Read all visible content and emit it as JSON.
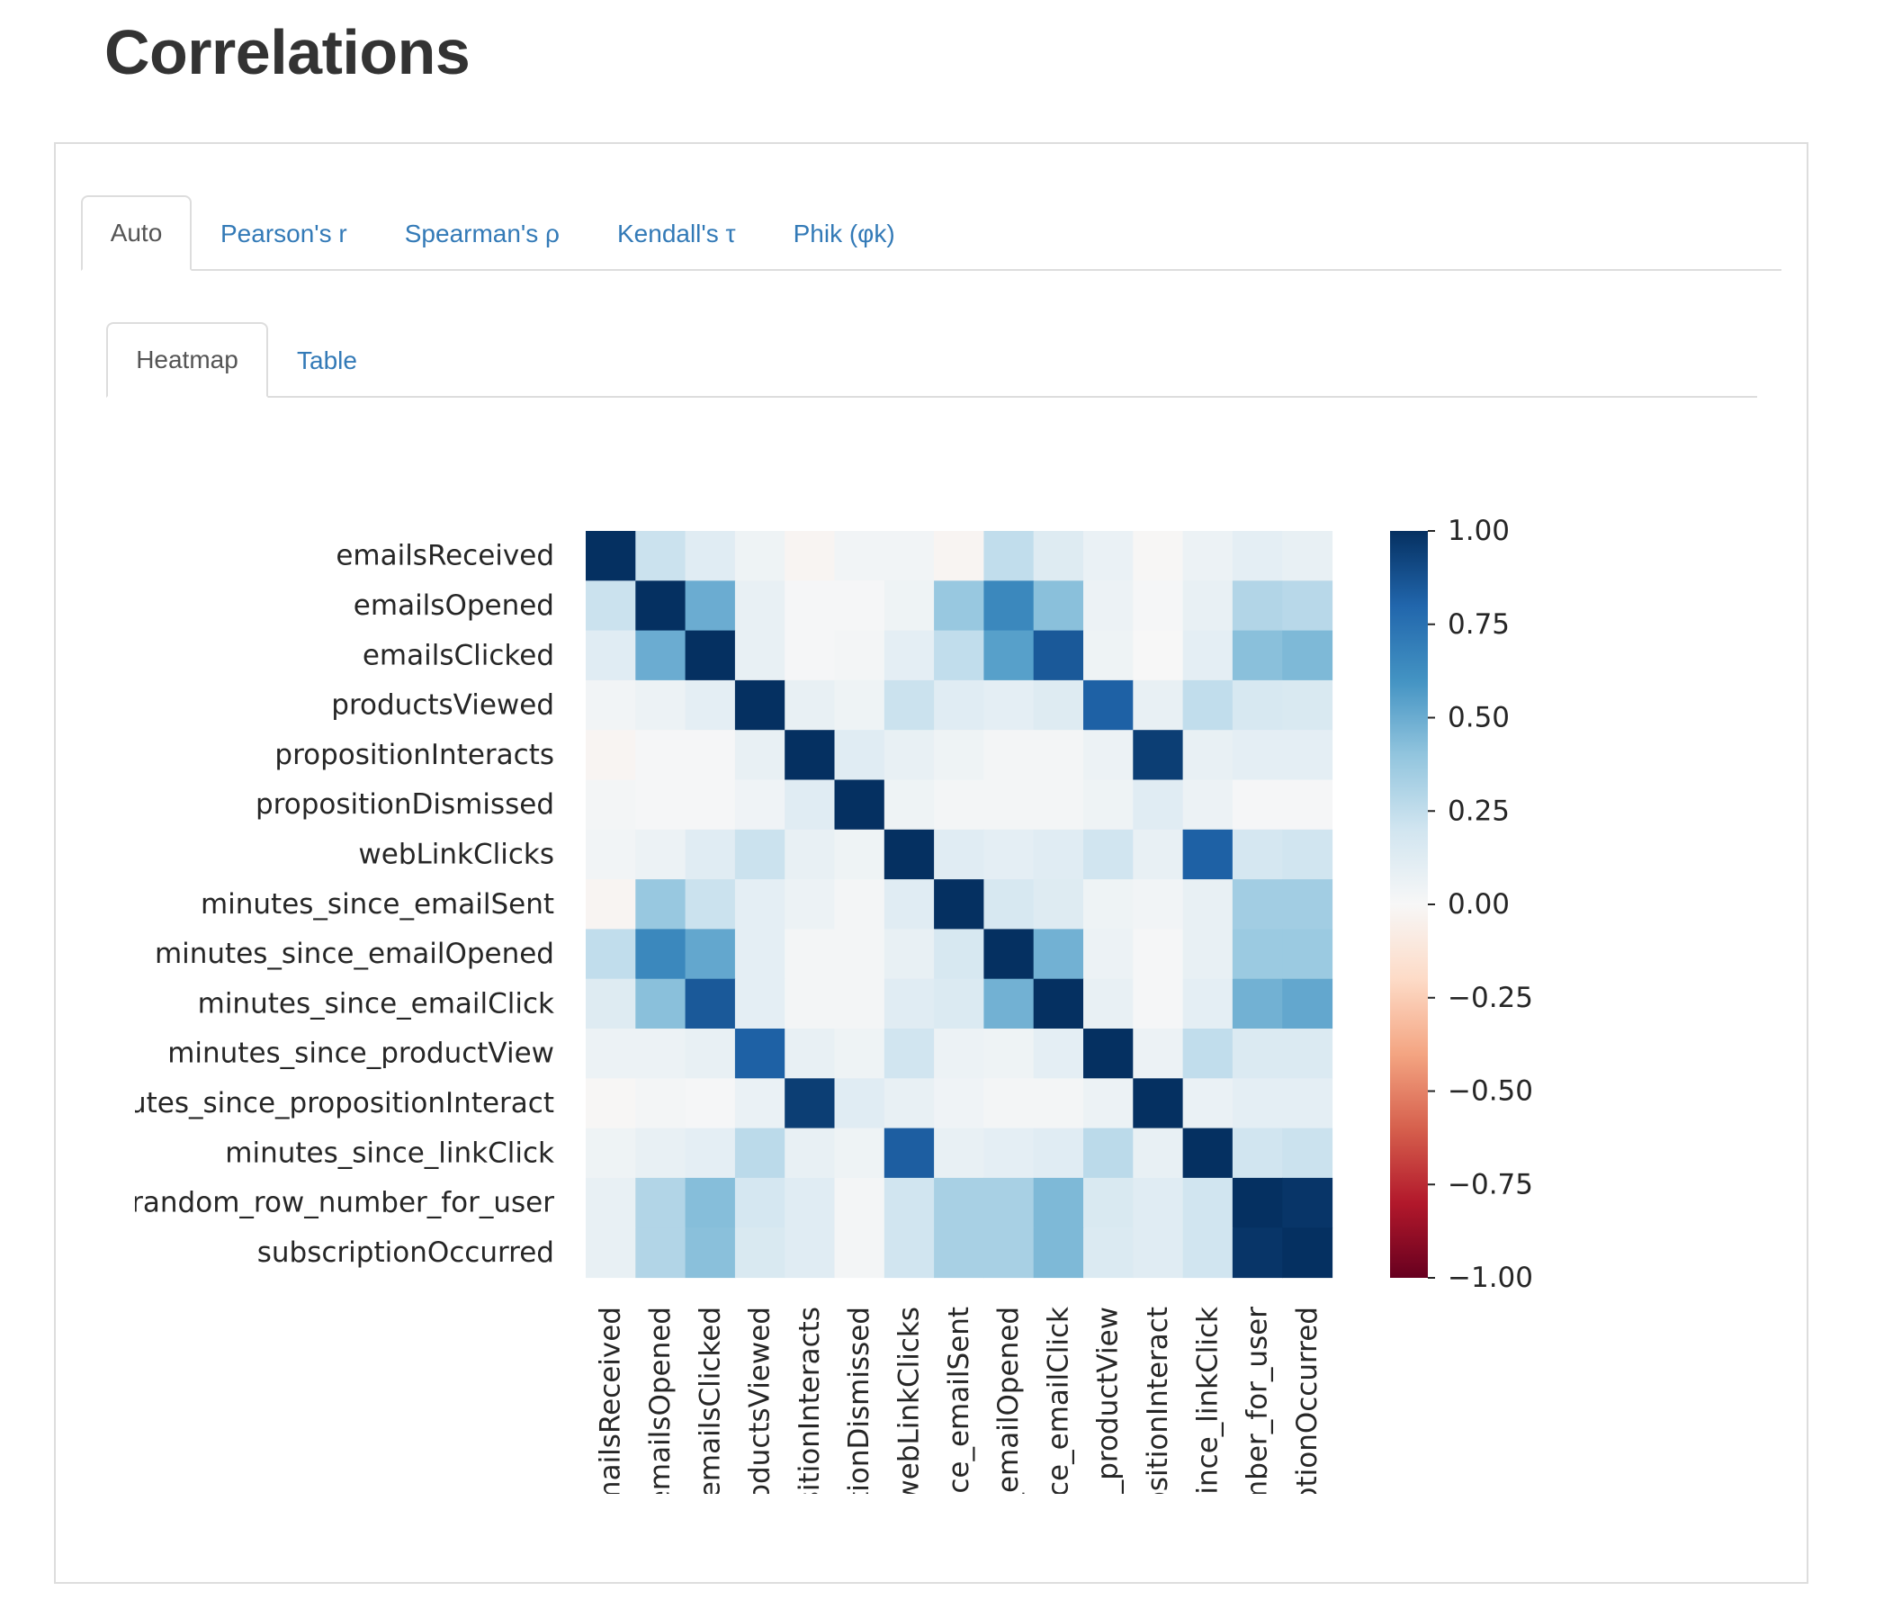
{
  "title": "Correlations",
  "main_tabs": [
    {
      "label": "Auto",
      "active": true
    },
    {
      "label": "Pearson's r",
      "active": false
    },
    {
      "label": "Spearman's ρ",
      "active": false
    },
    {
      "label": "Kendall's τ",
      "active": false
    },
    {
      "label": "Phik (φk)",
      "active": false
    }
  ],
  "sub_tabs": [
    {
      "label": "Heatmap",
      "active": true
    },
    {
      "label": "Table",
      "active": false
    }
  ],
  "colors": {
    "link": "#337ab7",
    "active_tab_text": "#555555",
    "border": "#dddddd",
    "colormap": [
      "#67001f",
      "#b2182b",
      "#d6604d",
      "#f4a582",
      "#fddbc7",
      "#f7f7f7",
      "#d1e5f0",
      "#92c5de",
      "#4393c3",
      "#2166ac",
      "#053061"
    ]
  },
  "chart_data": {
    "type": "heatmap",
    "row_labels": [
      "emailsReceived",
      "emailsOpened",
      "emailsClicked",
      "productsViewed",
      "propositionInteracts",
      "propositionDismissed",
      "webLinkClicks",
      "minutes_since_emailSent",
      "minutes_since_emailOpened",
      "minutes_since_emailClick",
      "minutes_since_productView",
      "utes_since_propositionInteract",
      "minutes_since_linkClick",
      "random_row_number_for_user",
      "subscriptionOccurred"
    ],
    "col_labels": [
      "mailsReceived",
      "emailsOpened",
      "emailsClicked",
      "oductsViewed",
      "sitionInteracts",
      "tionDismissed",
      "webLinkClicks",
      "nce_emailSent",
      "_emailOpened",
      "ce_emailClick",
      "e_productView",
      "positionInteract",
      "since_linkClick",
      "mber_for_user",
      "ptionOccurred"
    ],
    "values": [
      [
        1.0,
        0.22,
        0.12,
        0.05,
        -0.02,
        0.03,
        0.03,
        -0.02,
        0.25,
        0.13,
        0.07,
        -0.01,
        0.06,
        0.1,
        0.08
      ],
      [
        0.22,
        1.0,
        0.5,
        0.08,
        0.01,
        0.01,
        0.05,
        0.38,
        0.65,
        0.42,
        0.06,
        0.01,
        0.08,
        0.3,
        0.28
      ],
      [
        0.12,
        0.5,
        1.0,
        0.08,
        0.01,
        0.02,
        0.1,
        0.25,
        0.55,
        0.85,
        0.05,
        0.0,
        0.1,
        0.42,
        0.45
      ],
      [
        0.03,
        0.06,
        0.1,
        1.0,
        0.08,
        0.05,
        0.22,
        0.12,
        0.1,
        0.13,
        0.82,
        0.08,
        0.25,
        0.17,
        0.16
      ],
      [
        -0.02,
        0.01,
        0.01,
        0.08,
        1.0,
        0.12,
        0.08,
        0.05,
        0.02,
        0.02,
        0.06,
        0.95,
        0.08,
        0.1,
        0.1
      ],
      [
        0.02,
        0.01,
        0.01,
        0.04,
        0.12,
        1.0,
        0.05,
        0.02,
        0.02,
        0.02,
        0.05,
        0.12,
        0.06,
        0.01,
        0.01
      ],
      [
        0.03,
        0.06,
        0.12,
        0.22,
        0.08,
        0.05,
        1.0,
        0.12,
        0.1,
        0.12,
        0.2,
        0.08,
        0.82,
        0.18,
        0.2
      ],
      [
        -0.02,
        0.38,
        0.22,
        0.1,
        0.06,
        0.02,
        0.12,
        1.0,
        0.17,
        0.13,
        0.05,
        0.03,
        0.08,
        0.35,
        0.35
      ],
      [
        0.25,
        0.65,
        0.52,
        0.1,
        0.02,
        0.02,
        0.08,
        0.17,
        1.0,
        0.48,
        0.06,
        0.01,
        0.08,
        0.37,
        0.37
      ],
      [
        0.13,
        0.42,
        0.85,
        0.1,
        0.02,
        0.02,
        0.12,
        0.15,
        0.48,
        1.0,
        0.08,
        0.01,
        0.1,
        0.48,
        0.52
      ],
      [
        0.06,
        0.06,
        0.08,
        0.82,
        0.08,
        0.05,
        0.2,
        0.06,
        0.05,
        0.1,
        1.0,
        0.06,
        0.25,
        0.15,
        0.15
      ],
      [
        -0.01,
        0.02,
        0.01,
        0.07,
        0.95,
        0.12,
        0.08,
        0.04,
        0.02,
        0.02,
        0.06,
        1.0,
        0.07,
        0.1,
        0.1
      ],
      [
        0.05,
        0.08,
        0.1,
        0.27,
        0.08,
        0.05,
        0.83,
        0.08,
        0.1,
        0.12,
        0.27,
        0.08,
        1.0,
        0.2,
        0.22
      ],
      [
        0.08,
        0.3,
        0.43,
        0.18,
        0.12,
        0.02,
        0.2,
        0.33,
        0.33,
        0.45,
        0.16,
        0.12,
        0.2,
        1.0,
        0.98
      ],
      [
        0.08,
        0.3,
        0.42,
        0.16,
        0.12,
        0.02,
        0.2,
        0.33,
        0.33,
        0.45,
        0.15,
        0.12,
        0.2,
        0.98,
        1.0
      ]
    ],
    "vmin": -1.0,
    "vmax": 1.0,
    "colorbar_ticks": [
      "1.00",
      "0.75",
      "0.50",
      "0.25",
      "0.00",
      "−0.25",
      "−0.50",
      "−0.75",
      "−1.00"
    ]
  }
}
